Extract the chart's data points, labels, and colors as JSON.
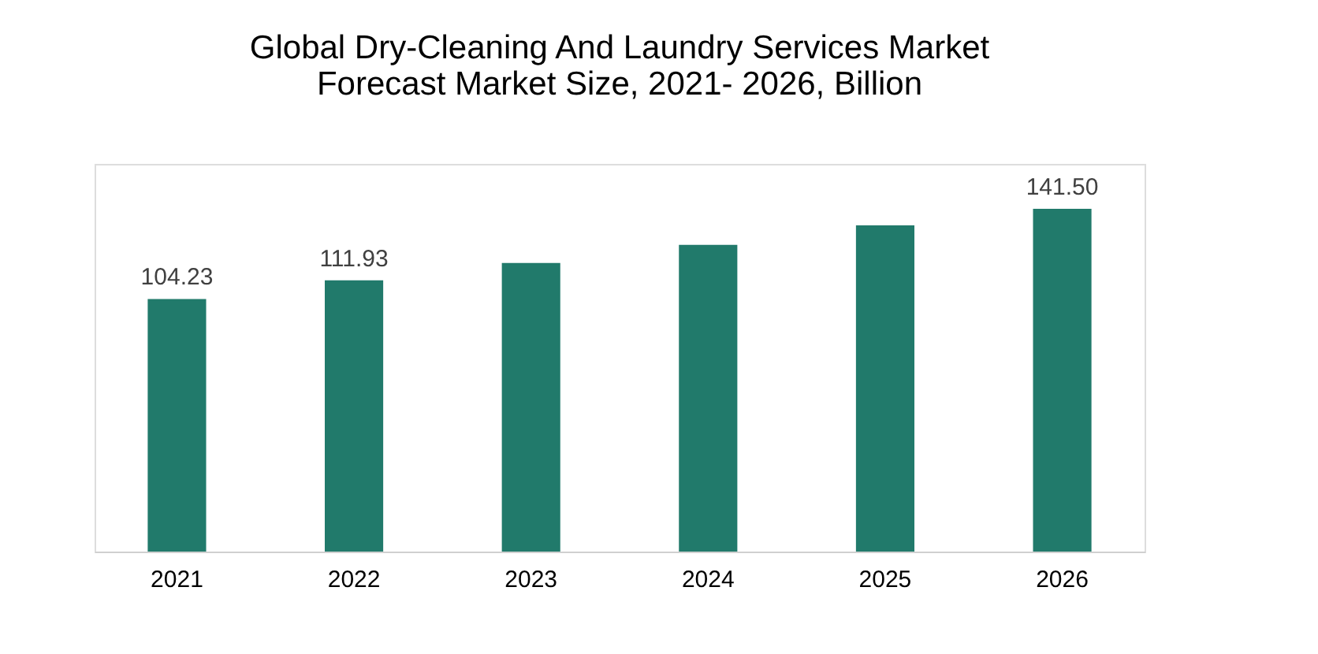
{
  "chart_data": {
    "type": "bar",
    "title": [
      "Global Dry-Cleaning And Laundry Services Market",
      "Forecast Market Size, 2021- 2026, Billion"
    ],
    "categories": [
      "2021",
      "2022",
      "2023",
      "2024",
      "2025",
      "2026"
    ],
    "values": [
      104.23,
      111.93,
      119.1,
      126.6,
      134.6,
      141.5
    ],
    "value_labels": [
      "104.23",
      "111.93",
      null,
      null,
      null,
      "141.50"
    ],
    "color": "#217a6b",
    "ylim": [
      0,
      160
    ],
    "tick_labels": "x"
  }
}
